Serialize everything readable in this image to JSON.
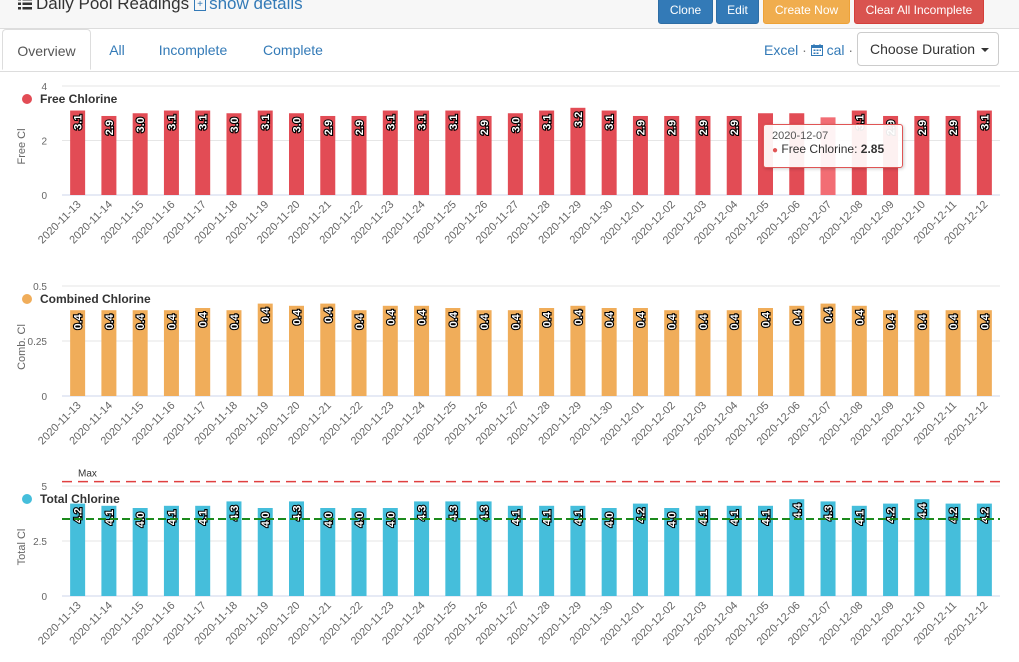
{
  "header": {
    "title": "Daily Pool Readings",
    "show_details": "show details",
    "buttons": {
      "clone": "Clone",
      "edit": "Edit",
      "create_now": "Create Now",
      "clear_incomplete": "Clear All Incomplete"
    }
  },
  "tabs": [
    "Overview",
    "All",
    "Incomplete",
    "Complete"
  ],
  "tools": {
    "excel": "Excel",
    "cal": "cal",
    "duration": "Choose Duration"
  },
  "colors": {
    "free": "#e24c55",
    "combined": "#f0ad5a",
    "total": "#45bedb",
    "max_line": "#e04040",
    "target_line": "#1c8a1c",
    "btn_primary": "#337ab7",
    "btn_warning": "#f0ad4e",
    "btn_danger": "#d9534f"
  },
  "chart_data": [
    {
      "type": "bar",
      "legend": "Free Chlorine",
      "ylabel": "Free Cl",
      "yticks": [
        "4",
        "2",
        "0"
      ],
      "ylim": [
        0,
        4
      ],
      "categories": [
        "2020-11-13",
        "2020-11-14",
        "2020-11-15",
        "2020-11-16",
        "2020-11-17",
        "2020-11-18",
        "2020-11-19",
        "2020-11-20",
        "2020-11-21",
        "2020-11-22",
        "2020-11-23",
        "2020-11-24",
        "2020-11-25",
        "2020-11-26",
        "2020-11-27",
        "2020-11-28",
        "2020-11-29",
        "2020-11-30",
        "2020-12-01",
        "2020-12-02",
        "2020-12-03",
        "2020-12-04",
        "2020-12-05",
        "2020-12-06",
        "2020-12-07",
        "2020-12-08",
        "2020-12-09",
        "2020-12-10",
        "2020-12-11",
        "2020-12-12"
      ],
      "values": [
        3.1,
        2.9,
        3.0,
        3.1,
        3.1,
        3.0,
        3.1,
        3.0,
        2.9,
        2.9,
        3.1,
        3.1,
        3.1,
        2.9,
        3.0,
        3.1,
        3.2,
        3.1,
        2.9,
        2.9,
        2.9,
        2.9,
        3.0,
        3.0,
        2.85,
        3.1,
        2.9,
        2.9,
        2.9,
        3.1
      ],
      "labels": [
        "3.1",
        "2.9",
        "3.0",
        "3.1",
        "3.1",
        "3.0",
        "3.1",
        "3.0",
        "2.9",
        "2.9",
        "3.1",
        "3.1",
        "3.1",
        "2.9",
        "3.0",
        "3.1",
        "3.2",
        "3.1",
        "2.9",
        "2.9",
        "2.9",
        "2.9",
        "",
        "",
        "",
        "3.1",
        "2.9",
        "2.9",
        "2.9",
        "3.1"
      ],
      "highlight_index": 24,
      "tooltip": {
        "date": "2020-12-07",
        "series": "Free Chlorine:",
        "value": "2.85"
      }
    },
    {
      "type": "bar",
      "legend": "Combined Chlorine",
      "ylabel": "Comb. Cl",
      "yticks": [
        "0.5",
        "0.25",
        "0"
      ],
      "ylim": [
        0,
        0.5
      ],
      "categories": [
        "2020-11-13",
        "2020-11-14",
        "2020-11-15",
        "2020-11-16",
        "2020-11-17",
        "2020-11-18",
        "2020-11-19",
        "2020-11-20",
        "2020-11-21",
        "2020-11-22",
        "2020-11-23",
        "2020-11-24",
        "2020-11-25",
        "2020-11-26",
        "2020-11-27",
        "2020-11-28",
        "2020-11-29",
        "2020-11-30",
        "2020-12-01",
        "2020-12-02",
        "2020-12-03",
        "2020-12-04",
        "2020-12-05",
        "2020-12-06",
        "2020-12-07",
        "2020-12-08",
        "2020-12-09",
        "2020-12-10",
        "2020-12-11",
        "2020-12-12"
      ],
      "values": [
        0.39,
        0.39,
        0.39,
        0.39,
        0.4,
        0.39,
        0.42,
        0.41,
        0.42,
        0.39,
        0.41,
        0.41,
        0.4,
        0.39,
        0.39,
        0.4,
        0.41,
        0.4,
        0.4,
        0.39,
        0.39,
        0.39,
        0.4,
        0.41,
        0.42,
        0.41,
        0.39,
        0.39,
        0.39,
        0.39
      ],
      "labels": [
        "0.4",
        "0.4",
        "0.4",
        "0.4",
        "0.4",
        "0.4",
        "0.4",
        "0.4",
        "0.4",
        "0.4",
        "0.4",
        "0.4",
        "0.4",
        "0.4",
        "0.4",
        "0.4",
        "0.4",
        "0.4",
        "0.4",
        "0.4",
        "0.4",
        "0.4",
        "0.4",
        "0.4",
        "0.4",
        "0.4",
        "0.4",
        "0.4",
        "0.4",
        "0.4"
      ]
    },
    {
      "type": "bar",
      "legend": "Total Chlorine",
      "ylabel": "Total Cl",
      "yticks": [
        "5",
        "2.5",
        "0"
      ],
      "ylim": [
        0,
        5
      ],
      "max_label": "Max",
      "max_value": 5.2,
      "target_value": 3.5,
      "categories": [
        "2020-11-13",
        "2020-11-14",
        "2020-11-15",
        "2020-11-16",
        "2020-11-17",
        "2020-11-18",
        "2020-11-19",
        "2020-11-20",
        "2020-11-21",
        "2020-11-22",
        "2020-11-23",
        "2020-11-24",
        "2020-11-25",
        "2020-11-26",
        "2020-11-27",
        "2020-11-28",
        "2020-11-29",
        "2020-11-30",
        "2020-12-01",
        "2020-12-02",
        "2020-12-03",
        "2020-12-04",
        "2020-12-05",
        "2020-12-06",
        "2020-12-07",
        "2020-12-08",
        "2020-12-09",
        "2020-12-10",
        "2020-12-11",
        "2020-12-12"
      ],
      "values": [
        4.2,
        4.1,
        4.0,
        4.1,
        4.1,
        4.3,
        4.0,
        4.3,
        4.0,
        4.0,
        4.0,
        4.3,
        4.3,
        4.3,
        4.1,
        4.1,
        4.1,
        4.0,
        4.2,
        4.0,
        4.1,
        4.1,
        4.1,
        4.4,
        4.3,
        4.1,
        4.2,
        4.4,
        4.2,
        4.2
      ],
      "labels": [
        "4.2",
        "4.1",
        "4.0",
        "4.1",
        "4.1",
        "4.3",
        "4.0",
        "4.3",
        "4.0",
        "4.0",
        "4.0",
        "4.3",
        "4.3",
        "4.3",
        "4.1",
        "4.1",
        "4.1",
        "4.0",
        "4.2",
        "4.0",
        "4.1",
        "4.1",
        "4.1",
        "4.4",
        "4.3",
        "4.1",
        "4.2",
        "4.4",
        "4.2",
        "4.2"
      ]
    }
  ]
}
